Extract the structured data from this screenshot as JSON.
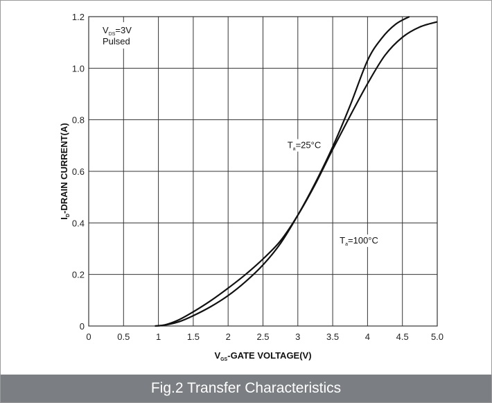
{
  "colors": {
    "caption_background": "#7b7e82",
    "caption_text": "#ffffff",
    "grid": "#333333",
    "curves": "#111111",
    "frame_border": "#9a9a9a"
  },
  "caption": "Fig.2 Transfer Characteristics",
  "chart_data": {
    "type": "line",
    "title": "",
    "xlabel": {
      "main": "V",
      "sub": "GS",
      "rest": "-GATE VOLTAGE(V)"
    },
    "ylabel": {
      "main": "I",
      "sub": "D",
      "rest": "-DRAIN CURRENT(A)"
    },
    "xlim": [
      0,
      5.0
    ],
    "ylim": [
      0,
      1.2
    ],
    "grid": true,
    "x_ticks": [
      0,
      0.5,
      1,
      1.5,
      2,
      2.5,
      3,
      3.5,
      4,
      4.5,
      5.0
    ],
    "x_tick_labels": [
      "0",
      "0.5",
      "1",
      "1.5",
      "2",
      "2.5",
      "3",
      "3.5",
      "4",
      "4.5",
      "5.0"
    ],
    "y_ticks": [
      0,
      0.2,
      0.4,
      0.6,
      0.8,
      1.0,
      1.2
    ],
    "y_tick_labels": [
      "0",
      "0.2",
      "0.4",
      "0.6",
      "0.8",
      "1.0",
      "1.2"
    ],
    "conditions": {
      "vds_main": "V",
      "vds_sub": "DS",
      "vds_rest": "=3V",
      "mode": "Pulsed"
    },
    "series": [
      {
        "label_main": "T",
        "label_sub": "a",
        "label_rest": "=25°C",
        "label_at": [
          2.85,
          0.69
        ],
        "x": [
          0.95,
          1.1,
          1.3,
          1.5,
          1.75,
          2.0,
          2.25,
          2.5,
          2.75,
          3.0,
          3.25,
          3.5,
          3.75,
          4.0,
          4.2,
          4.4,
          4.6
        ],
        "y": [
          0,
          0.004,
          0.017,
          0.04,
          0.075,
          0.118,
          0.172,
          0.237,
          0.32,
          0.43,
          0.555,
          0.695,
          0.855,
          1.03,
          1.115,
          1.17,
          1.2
        ]
      },
      {
        "label_main": "T",
        "label_sub": "a",
        "label_rest": "=100°C",
        "label_at": [
          3.6,
          0.32
        ],
        "x": [
          0.95,
          1.1,
          1.3,
          1.5,
          1.75,
          2.0,
          2.25,
          2.5,
          2.75,
          3.0,
          3.25,
          3.5,
          3.75,
          4.0,
          4.25,
          4.5,
          4.75,
          5.0
        ],
        "y": [
          0,
          0.005,
          0.025,
          0.055,
          0.098,
          0.147,
          0.2,
          0.26,
          0.33,
          0.43,
          0.55,
          0.685,
          0.815,
          0.94,
          1.05,
          1.12,
          1.16,
          1.18
        ]
      }
    ]
  }
}
